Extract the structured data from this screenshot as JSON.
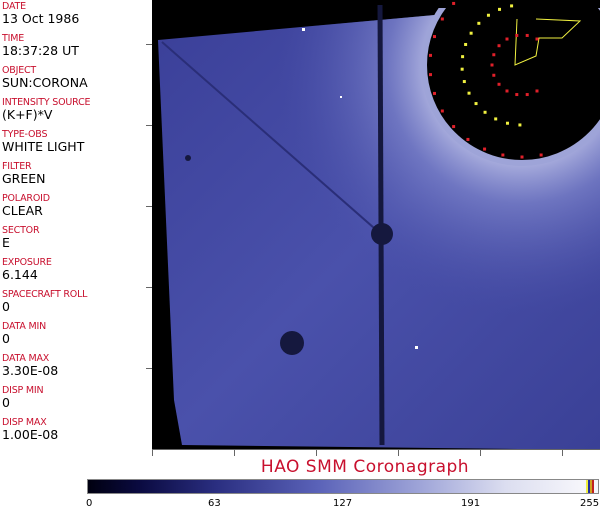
{
  "fields": [
    {
      "label": "DATE",
      "value": "13 Oct 1986"
    },
    {
      "label": "TIME",
      "value": "18:37:28 UT"
    },
    {
      "label": "OBJECT",
      "value": "SUN:CORONA"
    },
    {
      "label": "INTENSITY SOURCE",
      "value": "(K+F)*V"
    },
    {
      "label": "TYPE-OBS",
      "value": "WHITE LIGHT"
    },
    {
      "label": "FILTER",
      "value": "GREEN"
    },
    {
      "label": "POLAROID",
      "value": "CLEAR"
    },
    {
      "label": "SECTOR",
      "value": "E"
    },
    {
      "label": "EXPOSURE",
      "value": "6.144"
    },
    {
      "label": "SPACECRAFT ROLL",
      "value": "0"
    },
    {
      "label": "DATA MIN",
      "value": "0"
    },
    {
      "label": "DATA MAX",
      "value": "3.30E-08"
    },
    {
      "label": "DISP MIN",
      "value": "0"
    },
    {
      "label": "DISP MAX",
      "value": "1.00E-08"
    }
  ],
  "title": "HAO  SMM Coronagraph",
  "colorbar": {
    "labels": [
      "0",
      "63",
      "127",
      "191",
      "255"
    ],
    "min": 0,
    "max": 255
  },
  "colors": {
    "label": "#c8102e",
    "image_tint": "#5a62b8",
    "markers_red": "#e0202a",
    "markers_yellow": "#f0f040"
  }
}
